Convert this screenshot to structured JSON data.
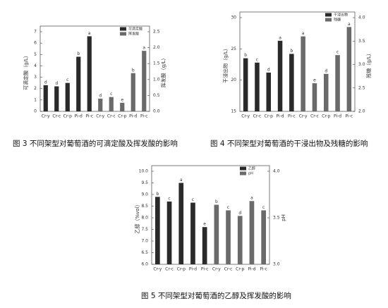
{
  "chart_data": [
    {
      "type": "bar",
      "caption": "图 3  不同架型对葡萄酒的可滴定酸及挥发酸的影响",
      "ylabel": "可滴定酸（g/L）",
      "y2label": "挥发酸（g/L）",
      "categories": [
        "Cr-y",
        "Cr-c",
        "Cr-p",
        "Pi-d",
        "Pi-c",
        "Cr-y",
        "Cr-c",
        "Cr-p",
        "Pi-d",
        "Pi-c"
      ],
      "series": [
        {
          "name": "可滴定酸",
          "color": "#2a2a2a",
          "axis": "y",
          "values": [
            2.3,
            2.2,
            2.5,
            4.8,
            6.6,
            null,
            null,
            null,
            null,
            null
          ],
          "letters": [
            "d",
            "d",
            "c",
            "b",
            "a",
            null,
            null,
            null,
            null,
            null
          ]
        },
        {
          "name": "挥发酸",
          "color": "#6a6a6a",
          "axis": "y2",
          "values": [
            null,
            null,
            null,
            null,
            null,
            0.4,
            0.45,
            0.27,
            1.2,
            1.9
          ],
          "letters": [
            null,
            null,
            null,
            null,
            null,
            "d",
            "c",
            "e",
            "b",
            "a"
          ]
        }
      ],
      "ylim": [
        0,
        7
      ],
      "yticks": [
        0,
        1,
        2,
        3,
        4,
        5,
        6,
        7
      ],
      "y2lim": [
        0,
        2.5
      ],
      "y2ticks": [
        {
          "value": 0,
          "label": "0.0"
        },
        0.5,
        {
          "value": 1,
          "label": "1.0"
        },
        1.5,
        {
          "value": 2,
          "label": "2.0"
        },
        2.5
      ]
    },
    {
      "type": "bar",
      "caption": "图 4  不同架型对葡萄酒的干浸出物及残糖的影响",
      "ylabel": "干浸出物（g/L）",
      "y2label": "残糖（g/L）",
      "categories": [
        "Cr-y",
        "Cr-c",
        "Cr-p",
        "Pi-d",
        "Pi-c",
        "Cr-y",
        "Cr-c",
        "Cr-p",
        "Pi-d",
        "Pi-c"
      ],
      "series": [
        {
          "name": "干浸出物",
          "color": "#2a2a2a",
          "axis": "y",
          "values": [
            23.5,
            22.8,
            21.2,
            26.3,
            24.2,
            null,
            null,
            null,
            null,
            null
          ],
          "letters": [
            "b",
            "c",
            "d",
            "a",
            "b",
            null,
            null,
            null,
            null,
            null
          ]
        },
        {
          "name": "残糖",
          "color": "#6a6a6a",
          "axis": "y2",
          "values": [
            null,
            null,
            null,
            null,
            null,
            3.6,
            2.6,
            2.8,
            3.2,
            3.8
          ],
          "letters": [
            null,
            null,
            null,
            null,
            null,
            "a",
            "e",
            "d",
            "c",
            "a"
          ]
        }
      ],
      "ylim": [
        15,
        30
      ],
      "yticks": [
        15,
        20,
        25,
        30
      ],
      "y2lim": [
        2,
        4
      ],
      "y2ticks": [
        {
          "value": 2,
          "label": "2.0"
        },
        2.5,
        {
          "value": 3,
          "label": "3.0"
        },
        3.5,
        {
          "value": 4,
          "label": "4.0"
        }
      ]
    },
    {
      "type": "bar",
      "caption": "图 5   不同架型对葡萄酒的乙醇及挥发酸的影响",
      "ylabel": "乙醇（%vol）",
      "y2label": "pH",
      "categories": [
        "Cr-y",
        "Cr-c",
        "Cr-p",
        "Pi-d",
        "Pi-c",
        "Cr-y",
        "Cr-c",
        "Cr-p",
        "Pi-d",
        "Pi-c"
      ],
      "series": [
        {
          "name": "乙醇",
          "color": "#2a2a2a",
          "axis": "y",
          "values": [
            8.9,
            8.7,
            9.5,
            8.65,
            7.6,
            null,
            null,
            null,
            null,
            null
          ],
          "letters": [
            "b",
            "c",
            "a",
            "c",
            "e",
            null,
            null,
            null,
            null,
            null
          ]
        },
        {
          "name": "pH",
          "color": "#6a6a6a",
          "axis": "y2",
          "values": [
            null,
            null,
            null,
            null,
            null,
            3.64,
            3.58,
            3.52,
            3.68,
            3.58
          ],
          "letters": [
            null,
            null,
            null,
            null,
            null,
            "b",
            "c",
            "d",
            "a",
            "c"
          ]
        }
      ],
      "ylim": [
        6,
        10
      ],
      "yticks": [
        {
          "value": 6,
          "label": "6.0"
        },
        6.5,
        {
          "value": 7,
          "label": "7.0"
        },
        7.5,
        {
          "value": 8,
          "label": "8.0"
        },
        8.5,
        {
          "value": 9,
          "label": "9.0"
        },
        9.5,
        {
          "value": 10,
          "label": "10.0"
        }
      ],
      "y2lim": [
        3,
        4
      ],
      "y2ticks": [
        {
          "value": 3,
          "label": "3.0"
        },
        3.5,
        {
          "value": 4,
          "label": "4.0"
        }
      ]
    }
  ]
}
